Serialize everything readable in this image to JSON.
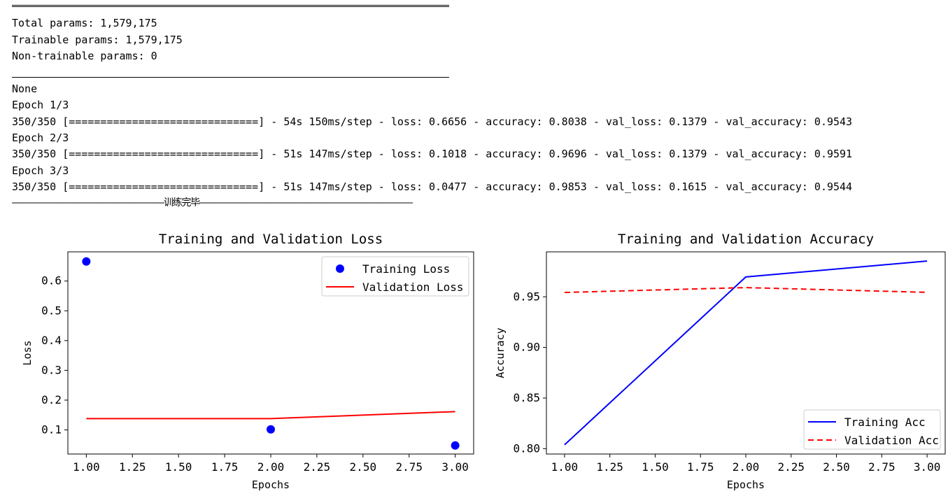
{
  "console": {
    "lines": [
      "Total params: 1,579,175",
      "Trainable params: 1,579,175",
      "Non-trainable params: 0",
      "None",
      "Epoch 1/3",
      "350/350 [==============================] - 54s 150ms/step - loss: 0.6656 - accuracy: 0.8038 - val_loss: 0.1379 - val_accuracy: 0.9543",
      "Epoch 2/3",
      "350/350 [==============================] - 51s 147ms/step - loss: 0.1018 - accuracy: 0.9696 - val_loss: 0.1379 - val_accuracy: 0.9591",
      "Epoch 3/3",
      "350/350 [==============================] - 51s 147ms/step - loss: 0.0477 - accuracy: 0.9853 - val_loss: 0.1615 - val_accuracy: 0.9544",
      "——————————————————————————————训练完毕——————————————————————————————————————————"
    ]
  },
  "chart_data": [
    {
      "type": "scatter+line",
      "title": "Training and Validation Loss",
      "xlabel": "Epochs",
      "ylabel": "Loss",
      "x": [
        1,
        2,
        3
      ],
      "xticks": [
        "1.00",
        "1.25",
        "1.50",
        "1.75",
        "2.00",
        "2.25",
        "2.50",
        "2.75",
        "3.00"
      ],
      "yticks": [
        "0.1",
        "0.2",
        "0.3",
        "0.4",
        "0.5",
        "0.6"
      ],
      "xlim": [
        0.9,
        3.1
      ],
      "ylim": [
        0.019,
        0.698
      ],
      "legend_position": "top-right",
      "series": [
        {
          "name": "Training Loss",
          "style": "points",
          "color": "#0000ff",
          "values": [
            0.6656,
            0.1018,
            0.0477
          ]
        },
        {
          "name": "Validation Loss",
          "style": "line",
          "color": "#ff0000",
          "values": [
            0.1379,
            0.1379,
            0.1615
          ]
        }
      ]
    },
    {
      "type": "line",
      "title": "Training and Validation Accuracy",
      "xlabel": "Epochs",
      "ylabel": "Accuracy",
      "x": [
        1,
        2,
        3
      ],
      "xticks": [
        "1.00",
        "1.25",
        "1.50",
        "1.75",
        "2.00",
        "2.25",
        "2.50",
        "2.75",
        "3.00"
      ],
      "yticks": [
        "0.80",
        "0.85",
        "0.90",
        "0.95"
      ],
      "xlim": [
        0.9,
        3.1
      ],
      "ylim": [
        0.7947,
        0.9944
      ],
      "legend_position": "bottom-right",
      "series": [
        {
          "name": "Training Acc",
          "style": "solid",
          "color": "#0000ff",
          "values": [
            0.8038,
            0.9696,
            0.9853
          ]
        },
        {
          "name": "Validation Acc",
          "style": "dashed",
          "color": "#ff0000",
          "values": [
            0.9543,
            0.9591,
            0.9544
          ]
        }
      ]
    }
  ]
}
